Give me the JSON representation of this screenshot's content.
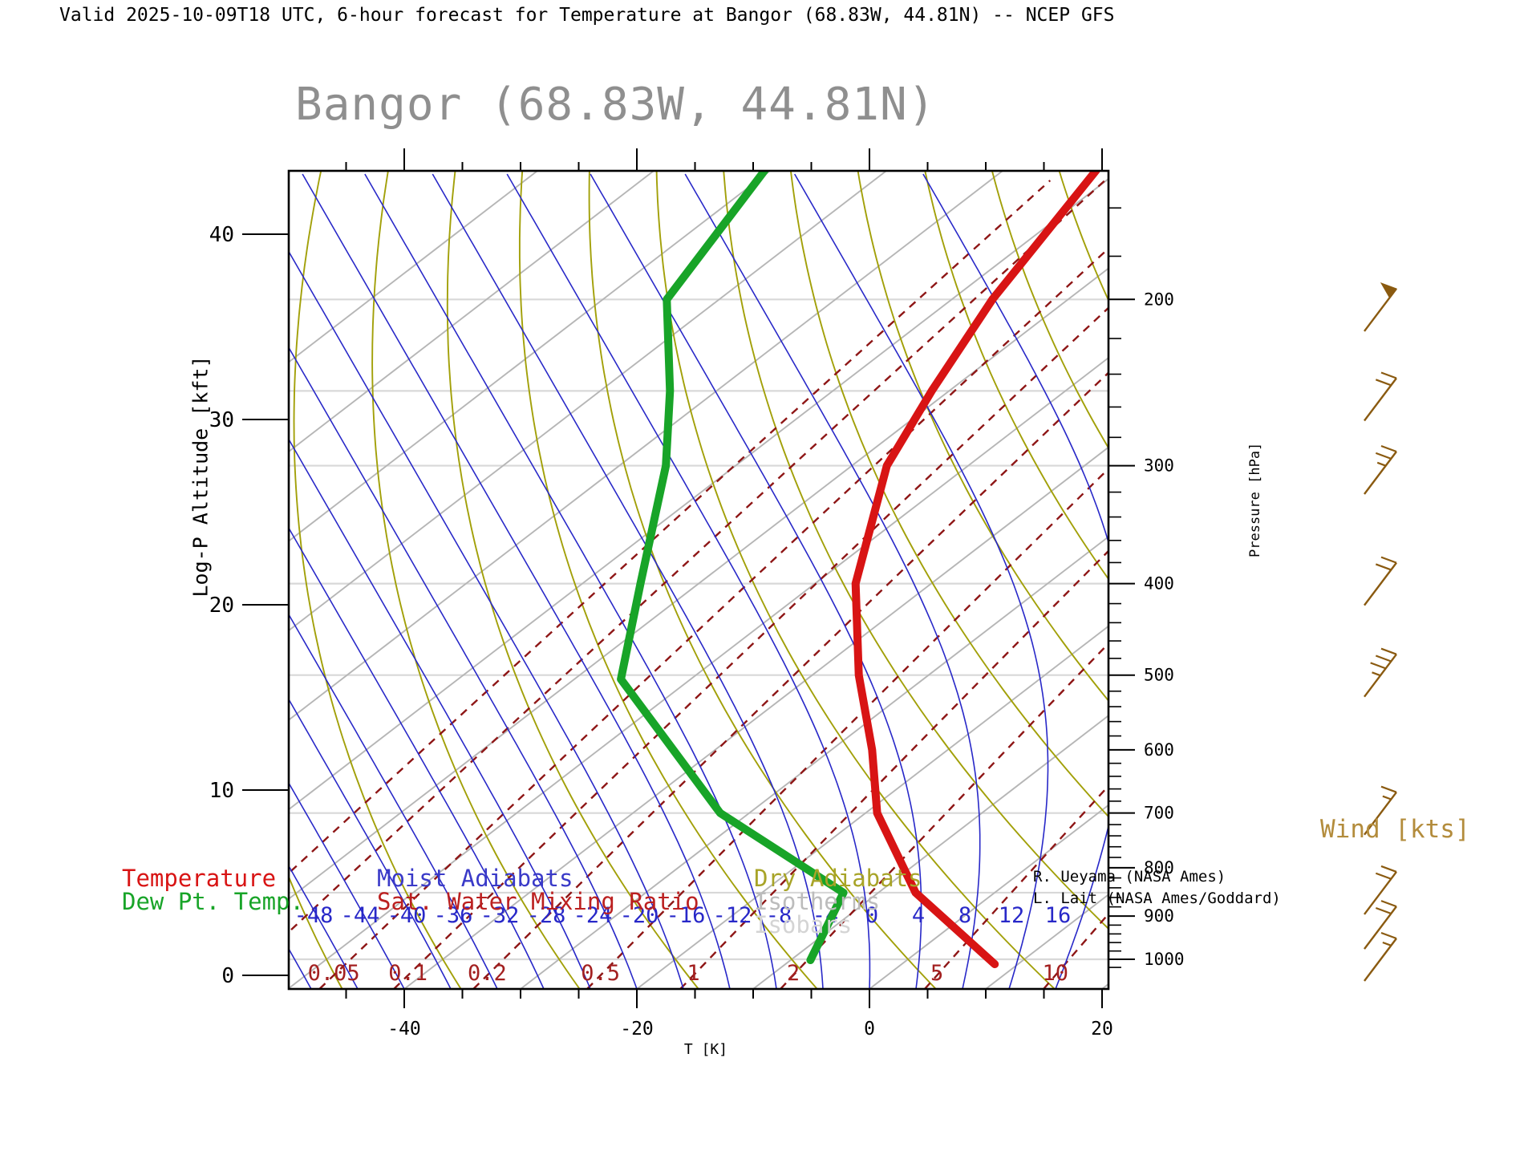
{
  "header": {
    "title": "Valid 2025-10-09T18 UTC, 6-hour forecast for Temperature at Bangor (68.83W, 44.81N) -- NCEP GFS"
  },
  "chart": {
    "heading": "Bangor (68.83W, 44.81N)",
    "x_axis_label": "T [K]",
    "y_axis_label": "Log-P Altitude [kft]",
    "right_axis_label": "Pressure [hPa]"
  },
  "wind": {
    "label": "Wind [kts]",
    "barbs": [
      {
        "pressure_hpa": 205,
        "speed_kts": 50
      },
      {
        "pressure_hpa": 255,
        "speed_kts": 20
      },
      {
        "pressure_hpa": 305,
        "speed_kts": 25
      },
      {
        "pressure_hpa": 400,
        "speed_kts": 20
      },
      {
        "pressure_hpa": 500,
        "speed_kts": 35
      },
      {
        "pressure_hpa": 700,
        "speed_kts": 15
      },
      {
        "pressure_hpa": 850,
        "speed_kts": 20
      },
      {
        "pressure_hpa": 925,
        "speed_kts": 20
      },
      {
        "pressure_hpa": 1000,
        "speed_kts": 15
      }
    ]
  },
  "legend": {
    "items": [
      {
        "label": "Temperature",
        "color": "#d81414",
        "col": 0,
        "row": 0
      },
      {
        "label": "Dew Pt. Temp.",
        "color": "#18a428",
        "col": 0,
        "row": 1
      },
      {
        "label": "Moist Adiabats",
        "color": "#3a3ac8",
        "col": 1,
        "row": 0
      },
      {
        "label": "Sat. Water Mixing Ratio",
        "color": "#bb2020",
        "col": 1,
        "row": 1
      },
      {
        "label": "Dry Adiabats",
        "color": "#a8a428",
        "col": 2,
        "row": 0
      },
      {
        "label": "Isotherms",
        "color": "#bcbcbc",
        "col": 2,
        "row": 1
      },
      {
        "label": "Isobars",
        "color": "#d4d4d4",
        "col": 2,
        "row": 2
      }
    ]
  },
  "credits": [
    "R. Ueyama (NASA Ames)",
    "L. Lait (NASA Ames/Goddard)"
  ],
  "colors": {
    "temperature": "#d81414",
    "dewpoint": "#18a428",
    "moist_adiabat": "#2828c8",
    "dry_adiabat": "#a2a009",
    "isotherm": "#b6b6b6",
    "isobar": "#d8d8d8",
    "mixing_ratio": "#8e1616",
    "mixing_label": "#a32020",
    "moist_label": "#2828c8",
    "wind_barb": "#8a5a10",
    "frame": "#000000",
    "heading": "#8f8f8f"
  },
  "chart_data": {
    "type": "line",
    "subtype": "skew-t-log-p-sounding",
    "title": "Bangor (68.83W, 44.81N)",
    "xlabel": "T [K]",
    "ylabel": "Log-P Altitude [kft]",
    "y2label": "Pressure [hPa]",
    "x_ticks_degC": [
      -40,
      -20,
      0,
      20
    ],
    "x_minor_step_degC": 5,
    "kft_ticks": [
      40,
      30,
      20,
      10,
      0
    ],
    "pressure_ticks_hpa": [
      200,
      300,
      400,
      500,
      600,
      700,
      800,
      900,
      1000
    ],
    "pressure_minor_step_hpa": 20,
    "isobar_lines_hpa": [
      200,
      250,
      300,
      400,
      500,
      700,
      850,
      1000
    ],
    "isotherm_lines_degC": {
      "from": -120,
      "to": 20,
      "step": 10
    },
    "dry_adiabat_theta_degC": {
      "from": -60,
      "to": 90,
      "step": 10
    },
    "moist_adiabat_labels_degC": [
      -48,
      -44,
      -40,
      -36,
      -32,
      -28,
      -24,
      -20,
      -16,
      -12,
      -8,
      -4,
      0,
      4,
      8,
      12,
      16
    ],
    "moist_adiabat_lines_degC": {
      "from": -120,
      "to": 16,
      "step": 4
    },
    "mixing_ratio_lines_gkg": [
      0.01,
      0.02,
      0.05,
      0.1,
      0.2,
      0.5,
      1,
      2,
      5,
      10
    ],
    "mixing_ratio_labels_gkg": [
      "0.05",
      "0.1",
      "0.2",
      "0.5",
      "1",
      "2",
      "5",
      "10"
    ],
    "series": [
      {
        "name": "Temperature",
        "units": [
          "hPa",
          "degC"
        ],
        "points": [
          [
            1012,
            8
          ],
          [
            850,
            -6.8
          ],
          [
            700,
            -19
          ],
          [
            600,
            -26.5
          ],
          [
            500,
            -36
          ],
          [
            400,
            -46.5
          ],
          [
            300,
            -57
          ],
          [
            250,
            -61.5
          ],
          [
            200,
            -66.5
          ],
          [
            146,
            -72
          ]
        ]
      },
      {
        "name": "Dew Pt. Temp.",
        "units": [
          "hPa",
          "degC"
        ],
        "points": [
          [
            1002,
            -8.3
          ],
          [
            850,
            -13
          ],
          [
            700,
            -32.5
          ],
          [
            505,
            -56
          ],
          [
            400,
            -65
          ],
          [
            300,
            -76
          ],
          [
            250,
            -84
          ],
          [
            200,
            -94.5
          ],
          [
            146,
            -100.5
          ]
        ]
      }
    ],
    "wind_profile_kts": [
      {
        "pressure_hpa": 205,
        "speed_kts": 50
      },
      {
        "pressure_hpa": 255,
        "speed_kts": 20
      },
      {
        "pressure_hpa": 305,
        "speed_kts": 25
      },
      {
        "pressure_hpa": 400,
        "speed_kts": 20
      },
      {
        "pressure_hpa": 500,
        "speed_kts": 35
      },
      {
        "pressure_hpa": 700,
        "speed_kts": 15
      },
      {
        "pressure_hpa": 850,
        "speed_kts": 20
      },
      {
        "pressure_hpa": 925,
        "speed_kts": 20
      },
      {
        "pressure_hpa": 1000,
        "speed_kts": 15
      }
    ],
    "legend_position": "bottom",
    "grid": "skew-t background families"
  }
}
